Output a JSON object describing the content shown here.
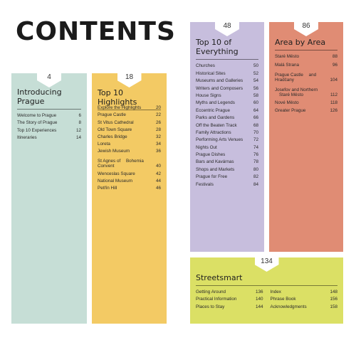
{
  "title": "CONTENTS",
  "sections": {
    "intro": {
      "page": "4",
      "title_line1": "Introducing",
      "title_line2": "Prague",
      "items": [
        {
          "label": "Welcome to Prague",
          "page": "6"
        },
        {
          "label": "The Story of Prague",
          "page": "8"
        },
        {
          "label": "Top 10 Experiences",
          "page": "12"
        },
        {
          "label": "Itineraries",
          "page": "14"
        }
      ]
    },
    "top10": {
      "page": "18",
      "title": "Top 10 Highlights",
      "items": [
        {
          "label": "Explore the Highlights",
          "page": "20"
        },
        {
          "label": "Prague Castle",
          "page": "22"
        },
        {
          "label": "St Vitus Cathedral",
          "page": "26"
        },
        {
          "label": "Old Town Square",
          "page": "28"
        },
        {
          "label": "Charles Bridge",
          "page": "32"
        },
        {
          "label": "Loreta",
          "page": "34"
        },
        {
          "label": "Jewish Museum",
          "page": "36"
        },
        {
          "label_line1": "St Agnes of",
          "label_line2": "Bohemia Convent",
          "page": "40"
        },
        {
          "label": "Wenceslas Square",
          "page": "42"
        },
        {
          "label": "National Museum",
          "page": "44"
        },
        {
          "label": "Petřín Hill",
          "page": "46"
        }
      ]
    },
    "everything": {
      "page": "48",
      "title_line1": "Top 10 of",
      "title_line2": "Everything",
      "items": [
        {
          "label": "Churches",
          "page": "50"
        },
        {
          "label": "Historical Sites",
          "page": "52"
        },
        {
          "label": "Museums and Galleries",
          "page": "54"
        },
        {
          "label": "Writers and Composers",
          "page": "56"
        },
        {
          "label": "House Signs",
          "page": "58"
        },
        {
          "label": "Myths and Legends",
          "page": "60"
        },
        {
          "label": "Eccentric Prague",
          "page": "64"
        },
        {
          "label": "Parks and Gardens",
          "page": "66"
        },
        {
          "label": "Off the Beaten Track",
          "page": "68"
        },
        {
          "label": "Family Attractions",
          "page": "70"
        },
        {
          "label": "Performing Arts Venues",
          "page": "72"
        },
        {
          "label": "Nights Out",
          "page": "74"
        },
        {
          "label": "Prague Dishes",
          "page": "76"
        },
        {
          "label": "Bars and Kavárnas",
          "page": "78"
        },
        {
          "label": "Shops and Markets",
          "page": "80"
        },
        {
          "label": "Prague for Free",
          "page": "82"
        },
        {
          "label": "Festivals",
          "page": "84"
        }
      ]
    },
    "area": {
      "page": "86",
      "title": "Area by Area",
      "items": [
        {
          "label": "Staré Město",
          "page": "88"
        },
        {
          "label": "Malá Strana",
          "page": "96"
        },
        {
          "label_line1": "Prague Castle",
          "label_line2": "and Hradčany",
          "page": "104"
        },
        {
          "label_line1": "Josefov and Northern",
          "label_line2": "Staré Město",
          "page": "112"
        },
        {
          "label": "Nové Město",
          "page": "118"
        },
        {
          "label": "Greater Prague",
          "page": "126"
        }
      ]
    },
    "streetsmart": {
      "page": "134",
      "title": "Streetsmart",
      "col1": [
        {
          "label": "Getting Around",
          "page": "136"
        },
        {
          "label": "Practical Information",
          "page": "140"
        },
        {
          "label": "Places to Stay",
          "page": "144"
        }
      ],
      "col2": [
        {
          "label": "Index",
          "page": "148"
        },
        {
          "label": "Phrase Book",
          "page": "156"
        },
        {
          "label": "Acknowledgments",
          "page": "158"
        }
      ]
    }
  },
  "colors": {
    "intro": "#c6ded6",
    "top10": "#f3ca64",
    "everything": "#c7bedd",
    "area": "#e08c74",
    "streetsmart": "#dbe065"
  }
}
